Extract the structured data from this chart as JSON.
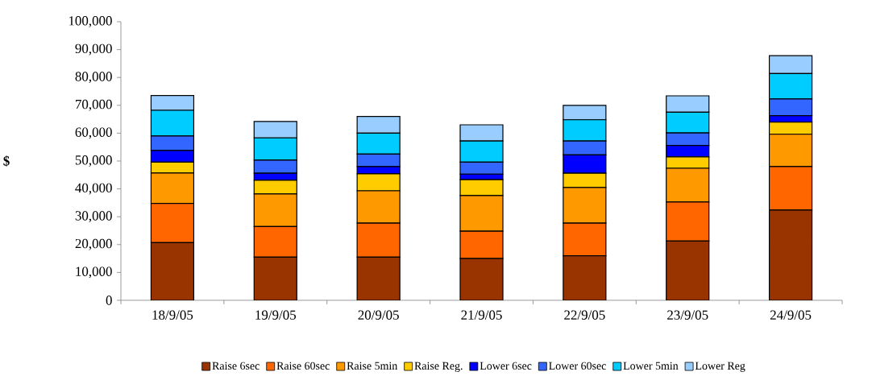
{
  "chart_data": {
    "type": "bar",
    "stacked": true,
    "ylabel": "$",
    "categories": [
      "18/9/05",
      "19/9/05",
      "20/9/05",
      "21/9/05",
      "22/9/05",
      "23/9/05",
      "24/9/05"
    ],
    "series": [
      {
        "name": "Raise 6sec",
        "color": "#993300",
        "values": [
          20700,
          15500,
          15500,
          15000,
          16000,
          21300,
          32400
        ]
      },
      {
        "name": "Raise 60sec",
        "color": "#ff6600",
        "values": [
          14100,
          11000,
          12200,
          9800,
          11700,
          14000,
          15600
        ]
      },
      {
        "name": "Raise 5min",
        "color": "#ff9900",
        "values": [
          10900,
          11700,
          11600,
          12800,
          12800,
          12100,
          11600
        ]
      },
      {
        "name": "Raise Reg.",
        "color": "#ffcc00",
        "values": [
          3900,
          4900,
          6100,
          5700,
          5100,
          4100,
          4400
        ]
      },
      {
        "name": "Lower 6sec",
        "color": "#0000ff",
        "values": [
          4200,
          2500,
          2600,
          2000,
          6600,
          4100,
          2300
        ]
      },
      {
        "name": "Lower 60sec",
        "color": "#3366ff",
        "values": [
          5200,
          4700,
          4500,
          4300,
          5000,
          4500,
          6000
        ]
      },
      {
        "name": "Lower 5min",
        "color": "#00ccff",
        "values": [
          9200,
          8000,
          7500,
          7600,
          7600,
          7400,
          9100
        ]
      },
      {
        "name": "Lower Reg",
        "color": "#99ccff",
        "values": [
          5300,
          5900,
          6000,
          5800,
          5200,
          5900,
          6400
        ]
      }
    ],
    "ylim": [
      0,
      100000
    ],
    "yticks": [
      0,
      {
        "value": 10000,
        "label": "10,000"
      },
      {
        "value": 20000,
        "label": "20,000"
      },
      {
        "value": 30000,
        "label": "30,000"
      },
      {
        "value": 40000,
        "label": "40,000"
      },
      {
        "value": 50000,
        "label": "50,000"
      },
      {
        "value": 60000,
        "label": "60,000"
      },
      {
        "value": 70000,
        "label": "70,000"
      },
      {
        "value": 80000,
        "label": "80,000"
      },
      {
        "value": 90000,
        "label": "90,000"
      },
      {
        "value": 100000,
        "label": "100,000"
      }
    ],
    "grid": false,
    "legend": "bottom"
  }
}
